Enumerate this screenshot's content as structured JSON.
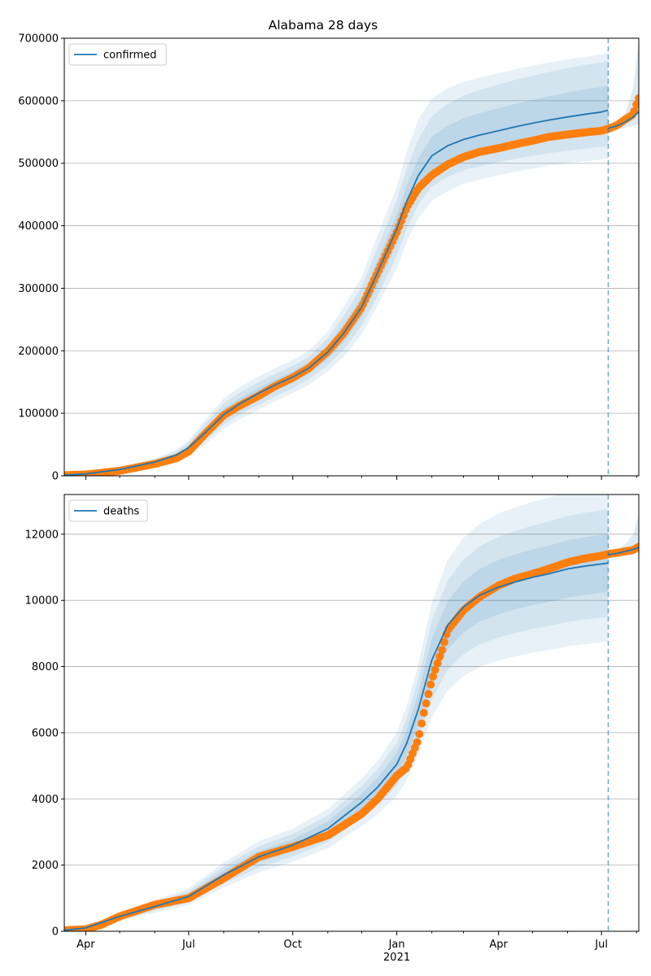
{
  "title": "Alabama 28 days",
  "colors": {
    "model": "#1f77b4",
    "observed": "#ff7f0e",
    "band": "#1f77b4",
    "grid": "#b0b0b0",
    "vline": "#1f77b4"
  },
  "chart_data": [
    {
      "type": "line",
      "name": "confirmed",
      "legend_position": "upper-left",
      "ylim": [
        0,
        700000
      ],
      "yticks": [
        0,
        100000,
        200000,
        300000,
        400000,
        500000,
        600000,
        700000
      ],
      "ytick_labels": [
        "0",
        "100000",
        "200000",
        "300000",
        "400000",
        "500000",
        "600000",
        "700000"
      ],
      "grid": "horizontal",
      "legend": [
        "confirmed"
      ],
      "forecast_start": "2021-07-07",
      "x_range": [
        "2020-03-13",
        "2021-08-03"
      ],
      "model_x": [
        "2020-03-13",
        "2020-04-01",
        "2020-05-01",
        "2020-06-01",
        "2020-06-20",
        "2020-07-01",
        "2020-07-15",
        "2020-08-01",
        "2020-08-15",
        "2020-09-01",
        "2020-09-15",
        "2020-10-01",
        "2020-10-15",
        "2020-11-01",
        "2020-11-15",
        "2020-12-01",
        "2020-12-15",
        "2021-01-01",
        "2021-01-10",
        "2021-01-20",
        "2021-02-01",
        "2021-02-15",
        "2021-03-01",
        "2021-03-15",
        "2021-04-01",
        "2021-04-15",
        "2021-05-01",
        "2021-05-15",
        "2021-06-01",
        "2021-06-15",
        "2021-07-01",
        "2021-07-07"
      ],
      "model_y": [
        1000,
        3000,
        10000,
        22000,
        33000,
        45000,
        68000,
        98000,
        115000,
        132000,
        145000,
        158000,
        172000,
        198000,
        228000,
        270000,
        325000,
        395000,
        440000,
        480000,
        512000,
        528000,
        538000,
        545000,
        552000,
        558000,
        564000,
        569000,
        574000,
        578000,
        582000,
        585000
      ],
      "band_inner": {
        "lower": [
          800,
          2500,
          9000,
          20000,
          30000,
          41000,
          61000,
          89000,
          106000,
          123000,
          136000,
          149000,
          163000,
          187000,
          214000,
          254000,
          305000,
          372000,
          417000,
          455000,
          485000,
          500000,
          510000,
          516000,
          522000,
          527000,
          532000,
          536000,
          540000,
          543000,
          546000,
          548000
        ],
        "upper": [
          1200,
          3500,
          11000,
          24000,
          36000,
          49000,
          75000,
          107000,
          124000,
          141000,
          154000,
          167000,
          181000,
          209000,
          242000,
          286000,
          345000,
          418000,
          465000,
          508000,
          542000,
          560000,
          572000,
          580000,
          588000,
          595000,
          601000,
          607000,
          613000,
          618000,
          622000,
          625000
        ]
      },
      "band_mid": {
        "lower": [
          700,
          2200,
          8000,
          18000,
          27000,
          37000,
          55000,
          82000,
          98000,
          114000,
          127000,
          140000,
          154000,
          177000,
          202000,
          240000,
          288000,
          352000,
          396000,
          434000,
          463000,
          478000,
          489000,
          495000,
          502000,
          507000,
          512000,
          516000,
          520000,
          523000,
          526000,
          528000
        ],
        "upper": [
          1300,
          3800,
          12000,
          26000,
          39000,
          53000,
          82000,
          116000,
          133000,
          150000,
          163000,
          176000,
          190000,
          220000,
          256000,
          302000,
          365000,
          440000,
          492000,
          538000,
          575000,
          595000,
          608000,
          617000,
          626000,
          633000,
          640000,
          646000,
          652000,
          657000,
          661000,
          664000
        ]
      },
      "band_outer": {
        "lower": [
          600,
          1900,
          7000,
          16000,
          24000,
          33000,
          49000,
          75000,
          90000,
          106000,
          119000,
          132000,
          145000,
          167000,
          190000,
          226000,
          272000,
          332000,
          375000,
          412000,
          440000,
          455000,
          467000,
          474000,
          481000,
          486000,
          491000,
          496000,
          500000,
          503000,
          506000,
          508000
        ],
        "upper": [
          1400,
          4100,
          13000,
          28000,
          42000,
          57000,
          88000,
          124000,
          142000,
          159000,
          172000,
          185000,
          200000,
          231000,
          270000,
          318000,
          385000,
          462000,
          520000,
          570000,
          604000,
          620000,
          630000,
          637000,
          644000,
          650000,
          656000,
          661000,
          666000,
          670000,
          674000,
          677000
        ]
      },
      "forecast_x": [
        "2021-07-07",
        "2021-07-15",
        "2021-07-22",
        "2021-07-29",
        "2021-08-03"
      ],
      "forecast_y": [
        556000,
        560000,
        566000,
        574000,
        582000
      ],
      "forecast_lower": [
        552000,
        554000,
        557000,
        560000,
        563000
      ],
      "forecast_upper": [
        560000,
        566000,
        580000,
        620000,
        698000
      ],
      "observed_x": [
        "2020-03-13",
        "2020-04-01",
        "2020-05-01",
        "2020-06-01",
        "2020-06-20",
        "2020-07-01",
        "2020-07-15",
        "2020-08-01",
        "2020-08-15",
        "2020-09-01",
        "2020-09-15",
        "2020-10-01",
        "2020-10-15",
        "2020-11-01",
        "2020-11-15",
        "2020-12-01",
        "2020-12-15",
        "2021-01-01",
        "2021-01-10",
        "2021-01-20",
        "2021-02-01",
        "2021-02-15",
        "2021-03-01",
        "2021-03-15",
        "2021-04-01",
        "2021-04-15",
        "2021-05-01",
        "2021-05-15",
        "2021-06-01",
        "2021-06-15",
        "2021-07-01",
        "2021-07-07",
        "2021-07-15",
        "2021-07-22",
        "2021-07-29",
        "2021-08-01",
        "2021-08-03"
      ],
      "observed_y": [
        1000,
        2000,
        8000,
        19000,
        28000,
        39000,
        66000,
        97000,
        112000,
        128000,
        143000,
        157000,
        172000,
        199000,
        228000,
        270000,
        325000,
        390000,
        430000,
        460000,
        481000,
        498000,
        510000,
        518000,
        524000,
        530000,
        536000,
        542000,
        546000,
        549000,
        552000,
        555000,
        561000,
        570000,
        578000,
        594000,
        604000
      ]
    },
    {
      "type": "line",
      "name": "deaths",
      "legend_position": "upper-left",
      "ylim": [
        0,
        13200
      ],
      "yticks": [
        0,
        2000,
        4000,
        6000,
        8000,
        10000,
        12000
      ],
      "ytick_labels": [
        "0",
        "2000",
        "4000",
        "6000",
        "8000",
        "10000",
        "12000"
      ],
      "grid": "horizontal",
      "legend": [
        "deaths"
      ],
      "forecast_start": "2021-07-07",
      "x_range": [
        "2020-03-13",
        "2021-08-03"
      ],
      "model_x": [
        "2020-03-13",
        "2020-04-01",
        "2020-05-01",
        "2020-06-01",
        "2020-07-01",
        "2020-08-01",
        "2020-09-01",
        "2020-10-01",
        "2020-11-01",
        "2020-12-01",
        "2020-12-15",
        "2021-01-01",
        "2021-01-10",
        "2021-01-20",
        "2021-02-01",
        "2021-02-15",
        "2021-03-01",
        "2021-03-15",
        "2021-04-01",
        "2021-04-15",
        "2021-05-01",
        "2021-05-15",
        "2021-06-01",
        "2021-06-15",
        "2021-07-01",
        "2021-07-07"
      ],
      "model_y": [
        30,
        100,
        450,
        750,
        1050,
        1700,
        2250,
        2600,
        3100,
        3900,
        4350,
        5050,
        5700,
        6700,
        8200,
        9250,
        9800,
        10150,
        10400,
        10550,
        10700,
        10800,
        10950,
        11030,
        11100,
        11130
      ],
      "band_inner": {
        "lower": [
          25,
          85,
          400,
          680,
          960,
          1560,
          2080,
          2420,
          2890,
          3640,
          4060,
          4710,
          5300,
          6200,
          7550,
          8520,
          9030,
          9350,
          9580,
          9720,
          9860,
          9950,
          10090,
          10160,
          10230,
          10260
        ],
        "upper": [
          35,
          115,
          500,
          820,
          1140,
          1840,
          2420,
          2780,
          3310,
          4160,
          4640,
          5390,
          6100,
          7200,
          8850,
          9980,
          10570,
          10950,
          11220,
          11380,
          11540,
          11650,
          11810,
          11900,
          11970,
          12000
        ]
      },
      "band_mid": {
        "lower": [
          20,
          75,
          360,
          620,
          880,
          1440,
          1930,
          2260,
          2700,
          3410,
          3800,
          4400,
          4940,
          5770,
          7010,
          7900,
          8370,
          8670,
          8880,
          9010,
          9140,
          9220,
          9350,
          9420,
          9480,
          9510
        ],
        "upper": [
          40,
          125,
          540,
          880,
          1220,
          1960,
          2570,
          2940,
          3500,
          4390,
          4900,
          5700,
          6460,
          7630,
          9390,
          10600,
          11230,
          11630,
          11920,
          12090,
          12260,
          12380,
          12550,
          12640,
          12720,
          12750
        ]
      },
      "band_outer": {
        "lower": [
          15,
          65,
          320,
          560,
          800,
          1320,
          1780,
          2100,
          2510,
          3180,
          3540,
          4090,
          4580,
          5340,
          6470,
          7280,
          7710,
          7990,
          8180,
          8300,
          8420,
          8490,
          8610,
          8670,
          8730,
          8760
        ],
        "upper": [
          45,
          135,
          580,
          940,
          1300,
          2080,
          2720,
          3100,
          3690,
          4620,
          5160,
          6010,
          6820,
          8060,
          9930,
          11220,
          11890,
          12310,
          12620,
          12800,
          12980,
          13110,
          13280,
          13380,
          13460,
          13500
        ]
      },
      "forecast_x": [
        "2021-07-07",
        "2021-07-15",
        "2021-07-22",
        "2021-07-29",
        "2021-08-03"
      ],
      "forecast_y": [
        11380,
        11420,
        11480,
        11540,
        11600
      ],
      "forecast_lower": [
        11350,
        11370,
        11400,
        11430,
        11460
      ],
      "forecast_upper": [
        11420,
        11520,
        11700,
        12000,
        12600
      ],
      "observed_x": [
        "2020-03-13",
        "2020-04-01",
        "2020-04-15",
        "2020-05-01",
        "2020-06-01",
        "2020-07-01",
        "2020-08-01",
        "2020-09-01",
        "2020-10-01",
        "2020-11-01",
        "2020-11-15",
        "2020-12-01",
        "2020-12-15",
        "2021-01-01",
        "2021-01-10",
        "2021-01-20",
        "2021-01-25",
        "2021-02-01",
        "2021-02-10",
        "2021-02-15",
        "2021-03-01",
        "2021-03-15",
        "2021-04-01",
        "2021-04-15",
        "2021-05-01",
        "2021-05-15",
        "2021-06-01",
        "2021-06-15",
        "2021-07-01",
        "2021-07-07",
        "2021-07-15",
        "2021-07-22",
        "2021-07-29",
        "2021-08-03"
      ],
      "observed_y": [
        30,
        60,
        200,
        450,
        800,
        1000,
        1600,
        2250,
        2550,
        2900,
        3200,
        3550,
        4000,
        4700,
        4950,
        5800,
        6600,
        7600,
        8500,
        9100,
        9700,
        10100,
        10450,
        10650,
        10800,
        10950,
        11150,
        11260,
        11350,
        11400,
        11440,
        11480,
        11520,
        11620
      ]
    }
  ],
  "x_axis": {
    "ticks": [
      "2020-04-01",
      "2020-07-01",
      "2020-10-01",
      "2021-01-01",
      "2021-04-01",
      "2021-07-01"
    ],
    "tick_labels": [
      "Apr",
      "Jul",
      "Oct",
      "Jan",
      "Apr",
      "Jul"
    ],
    "year_label": "2021"
  }
}
